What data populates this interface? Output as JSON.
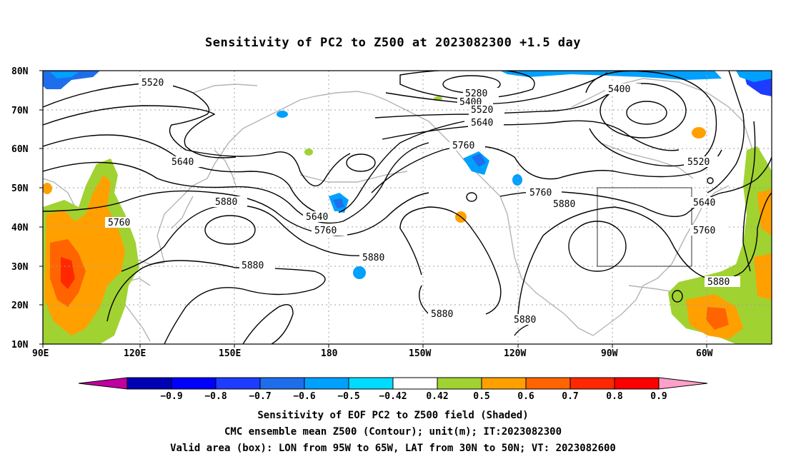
{
  "title": "Sensitivity of PC2 to Z500 at 2023082300 +1.5 day",
  "map": {
    "lat_labels": [
      "80N",
      "70N",
      "60N",
      "50N",
      "40N",
      "30N",
      "20N",
      "10N"
    ],
    "lon_labels": [
      "90E",
      "120E",
      "150E",
      "180",
      "150W",
      "120W",
      "90W",
      "60W"
    ],
    "contour_labels": [
      "5520",
      "5640",
      "5760",
      "5880",
      "5880",
      "5280",
      "5400",
      "5520",
      "5640",
      "5760",
      "5640",
      "5760",
      "5880",
      "5880",
      "5760",
      "5880",
      "5880",
      "5400",
      "5520",
      "5640",
      "5760",
      "5880"
    ],
    "valid_box": {
      "lon_west": "95W",
      "lon_east": "65W",
      "lat_south": "30N",
      "lat_north": "50N"
    }
  },
  "colorbar": {
    "labels": [
      "-0.9",
      "-0.8",
      "-0.7",
      "-0.6",
      "-0.5",
      "-0.42",
      "0.42",
      "0.5",
      "0.6",
      "0.7",
      "0.8",
      "0.9"
    ],
    "colors": [
      "#c000a0",
      "#0000b4",
      "#0000ff",
      "#1e3cff",
      "#1e6eeb",
      "#00a0ff",
      "#00dcff",
      "#ffffff",
      "#a0d232",
      "#ffa000",
      "#ff6400",
      "#ff2800",
      "#ff0000",
      "#ffa0c8"
    ]
  },
  "captions": {
    "line1": "Sensitivity of EOF PC2 to Z500 field (Shaded)",
    "line2": "CMC ensemble mean Z500 (Contour); unit(m); IT:2023082300",
    "line3": "Valid area (box): LON from 95W to 65W, LAT from 30N to 50N; VT: 2023082600"
  }
}
